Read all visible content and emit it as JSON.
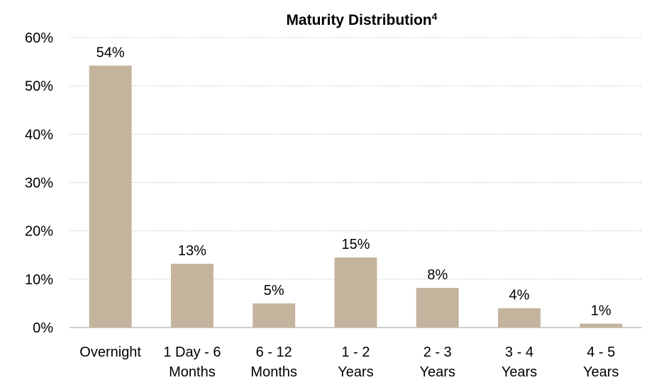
{
  "chart_data": {
    "type": "bar",
    "title": "Maturity Distribution",
    "title_superscript": "4",
    "categories": [
      "Overnight",
      "1 Day - 6\nMonths",
      "6 - 12\nMonths",
      "1 - 2\nYears",
      "2 - 3\nYears",
      "3 - 4\nYears",
      "4 - 5\nYears"
    ],
    "values": [
      54.2,
      13.2,
      5,
      14.5,
      8.2,
      4,
      0.8
    ],
    "value_labels": [
      "54%",
      "13%",
      "5%",
      "15%",
      "8%",
      "4%",
      "1%"
    ],
    "color": "#c5b49d",
    "ylim": [
      0,
      60
    ],
    "yticks": [
      {
        "value": 0,
        "label": "0%"
      },
      {
        "value": 10,
        "label": "10%"
      },
      {
        "value": 20,
        "label": "20%"
      },
      {
        "value": 30,
        "label": "30%"
      },
      {
        "value": 40,
        "label": "40%"
      },
      {
        "value": 50,
        "label": "50%"
      },
      {
        "value": 60,
        "label": "60%"
      }
    ],
    "grid": true
  }
}
